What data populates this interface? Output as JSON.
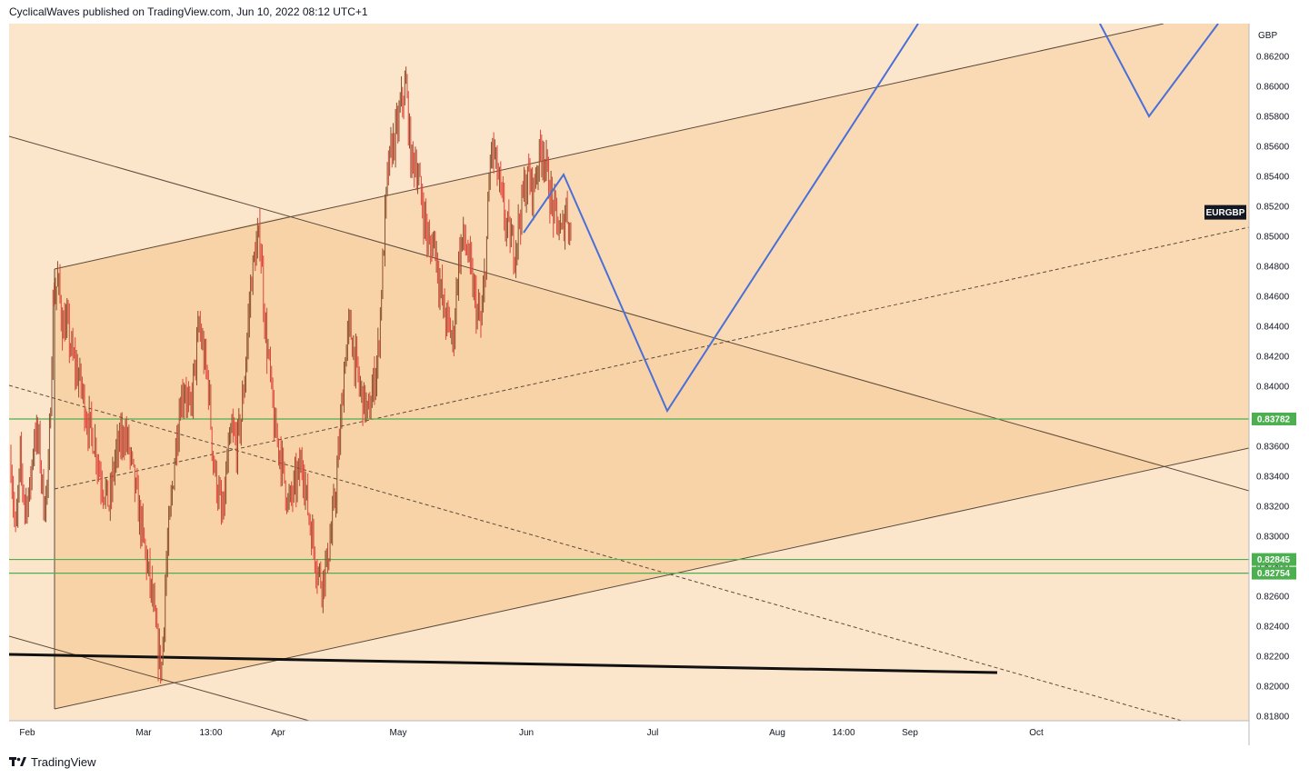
{
  "header": {
    "publisher_line": "CyclicalWaves published on TradingView.com, Jun 10, 2022 08:12 UTC+1"
  },
  "footer": {
    "brand": "TradingView"
  },
  "chart_data": {
    "type": "candlestick",
    "symbol": "EURGBP",
    "currency": "GBP",
    "y_ticks": [
      "0.86200",
      "0.86000",
      "0.85800",
      "0.85600",
      "0.85400",
      "0.85200",
      "0.85000",
      "0.84800",
      "0.84600",
      "0.84400",
      "0.84200",
      "0.84000",
      "0.83800",
      "0.83600",
      "0.83400",
      "0.83200",
      "0.83000",
      "0.82800",
      "0.82600",
      "0.82400",
      "0.82200",
      "0.82000",
      "0.81800"
    ],
    "y_tick_values": [
      0.862,
      0.86,
      0.858,
      0.856,
      0.854,
      0.852,
      0.85,
      0.848,
      0.846,
      0.844,
      0.842,
      0.84,
      0.838,
      0.836,
      0.834,
      0.832,
      0.83,
      0.828,
      0.826,
      0.824,
      0.822,
      0.82,
      0.818
    ],
    "ylim": [
      0.818,
      0.8637
    ],
    "x_ticks": [
      "Feb",
      "Mar",
      "13:00",
      "Apr",
      "May",
      "Jun",
      "Jul",
      "Aug",
      "14:00",
      "Sep",
      "Oct"
    ],
    "horizontal_levels": [
      {
        "label": "0.83782",
        "value": 0.83782,
        "color": "#4caf50"
      },
      {
        "label": "0.82845",
        "value": 0.82845,
        "color": "#4caf50"
      },
      {
        "label": "0.82754",
        "value": 0.82754,
        "color": "#4caf50"
      }
    ],
    "price_path": [
      [
        0.835,
        0.83,
        0.835,
        0.832,
        0.833,
        0.837,
        0.836,
        0.832
      ],
      [
        0.834,
        0.846,
        0.847,
        0.844,
        0.844,
        0.842,
        0.841,
        0.84
      ],
      [
        0.838,
        0.837,
        0.836,
        0.834,
        0.833,
        0.832,
        0.835,
        0.836
      ],
      [
        0.837,
        0.836,
        0.834,
        0.832,
        0.83,
        0.828,
        0.826,
        0.823,
        0.821,
        0.828
      ],
      [
        0.832,
        0.836,
        0.839,
        0.84,
        0.838,
        0.841,
        0.844,
        0.842,
        0.84,
        0.835,
        0.833,
        0.831
      ],
      [
        0.835,
        0.837,
        0.836,
        0.838,
        0.842,
        0.847,
        0.849,
        0.85
      ],
      [
        0.844,
        0.841,
        0.837,
        0.836,
        0.834,
        0.832,
        0.833,
        0.834,
        0.835
      ],
      [
        0.832,
        0.83,
        0.828,
        0.827,
        0.828,
        0.83,
        0.833,
        0.837
      ],
      [
        0.842,
        0.844,
        0.842,
        0.84,
        0.839,
        0.838,
        0.84,
        0.842
      ],
      [
        0.848,
        0.854,
        0.856,
        0.857,
        0.859,
        0.86,
        0.855,
        0.855,
        0.853,
        0.851,
        0.849,
        0.85
      ],
      [
        0.847,
        0.845,
        0.844,
        0.843,
        0.848,
        0.85,
        0.849,
        0.847,
        0.845,
        0.844
      ],
      [
        0.849,
        0.856,
        0.855,
        0.853,
        0.851,
        0.85,
        0.849,
        0.851,
        0.853
      ],
      [
        0.854,
        0.853,
        0.855,
        0.856,
        0.854,
        0.852,
        0.851,
        0.85,
        0.852,
        0.85
      ]
    ],
    "projection_color": "#4a6fd8"
  }
}
